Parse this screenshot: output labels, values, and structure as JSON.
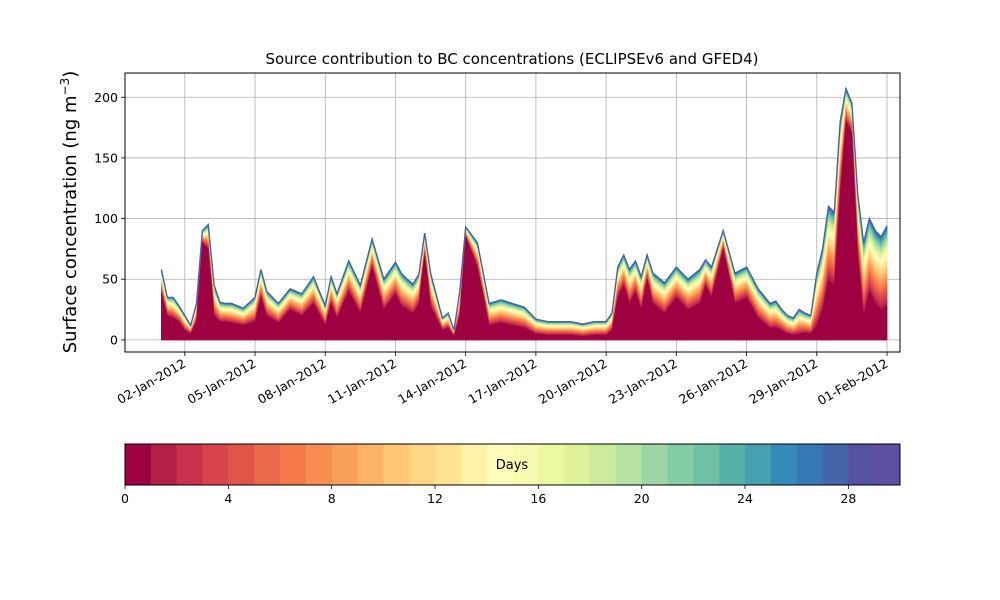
{
  "chart_data": {
    "type": "area",
    "subtype": "stacked-area",
    "title": "Source contribution to BC concentrations (ECLIPSEv6 and GFED4)",
    "ylabel": "Surface concentration (ng m",
    "ylabel_sup": "−3",
    "ylabel_close": ")",
    "xlabel": "",
    "x_axis": {
      "type": "date",
      "range": [
        "2011-12-31",
        "2012-02-01"
      ],
      "tick_values": [
        "2012-01-02",
        "2012-01-05",
        "2012-01-08",
        "2012-01-11",
        "2012-01-14",
        "2012-01-17",
        "2012-01-20",
        "2012-01-23",
        "2012-01-26",
        "2012-01-29",
        "2012-02-01"
      ],
      "tick_labels": [
        "02-Jan-2012",
        "05-Jan-2012",
        "08-Jan-2012",
        "11-Jan-2012",
        "14-Jan-2012",
        "17-Jan-2012",
        "20-Jan-2012",
        "23-Jan-2012",
        "26-Jan-2012",
        "29-Jan-2012",
        "01-Feb-2012"
      ]
    },
    "y_axis": {
      "range": [
        -10,
        220
      ],
      "ticks": [
        0,
        50,
        100,
        150,
        200
      ],
      "tick_labels": [
        "0",
        "50",
        "100",
        "150",
        "200"
      ]
    },
    "grid": true,
    "series_description": "Stacked contribution by days since emission (0–30 days); top envelope = total concentration",
    "x": [
      "2012-01-01",
      "2012-01-01 06:00",
      "2012-01-01 12:00",
      "2012-01-01 18:00",
      "2012-01-02",
      "2012-01-02 06:00",
      "2012-01-02 12:00",
      "2012-01-02 18:00",
      "2012-01-03",
      "2012-01-03 06:00",
      "2012-01-03 12:00",
      "2012-01-03 18:00",
      "2012-01-04",
      "2012-01-04 12:00",
      "2012-01-05",
      "2012-01-05 06:00",
      "2012-01-05 12:00",
      "2012-01-06",
      "2012-01-06 12:00",
      "2012-01-07",
      "2012-01-07 12:00",
      "2012-01-08",
      "2012-01-08 06:00",
      "2012-01-08 12:00",
      "2012-01-09",
      "2012-01-09 12:00",
      "2012-01-10",
      "2012-01-10 12:00",
      "2012-01-11",
      "2012-01-11 06:00",
      "2012-01-11 12:00",
      "2012-01-11 18:00",
      "2012-01-12",
      "2012-01-12 06:00",
      "2012-01-12 12:00",
      "2012-01-13",
      "2012-01-13 06:00",
      "2012-01-13 12:00",
      "2012-01-13 18:00",
      "2012-01-14",
      "2012-01-14 12:00",
      "2012-01-15",
      "2012-01-15 12:00",
      "2012-01-16",
      "2012-01-16 12:00",
      "2012-01-17",
      "2012-01-17 12:00",
      "2012-01-18",
      "2012-01-18 12:00",
      "2012-01-19",
      "2012-01-19 12:00",
      "2012-01-20",
      "2012-01-20 06:00",
      "2012-01-20 12:00",
      "2012-01-20 18:00",
      "2012-01-21",
      "2012-01-21 06:00",
      "2012-01-21 12:00",
      "2012-01-21 18:00",
      "2012-01-22",
      "2012-01-22 12:00",
      "2012-01-23",
      "2012-01-23 12:00",
      "2012-01-24",
      "2012-01-24 06:00",
      "2012-01-24 12:00",
      "2012-01-25",
      "2012-01-25 12:00",
      "2012-01-26",
      "2012-01-26 12:00",
      "2012-01-27",
      "2012-01-27 06:00",
      "2012-01-27 12:00",
      "2012-01-27 18:00",
      "2012-01-28",
      "2012-01-28 06:00",
      "2012-01-28 12:00",
      "2012-01-28 18:00",
      "2012-01-29",
      "2012-01-29 06:00",
      "2012-01-29 12:00",
      "2012-01-29 18:00",
      "2012-01-30",
      "2012-01-30 06:00",
      "2012-01-30 12:00",
      "2012-01-30 18:00",
      "2012-01-31",
      "2012-01-31 06:00",
      "2012-01-31 12:00",
      "2012-01-31 18:00",
      "2012-02-01"
    ],
    "total": [
      58,
      35,
      35,
      28,
      20,
      12,
      30,
      90,
      95,
      45,
      31,
      30,
      30,
      26,
      35,
      58,
      40,
      30,
      42,
      38,
      52,
      28,
      52,
      38,
      65,
      45,
      83,
      50,
      64,
      55,
      50,
      46,
      54,
      88,
      55,
      18,
      22,
      8,
      40,
      93,
      80,
      30,
      33,
      30,
      27,
      17,
      15,
      15,
      15,
      13,
      15,
      15,
      22,
      60,
      70,
      58,
      65,
      52,
      70,
      55,
      47,
      60,
      50,
      58,
      66,
      60,
      90,
      55,
      60,
      42,
      30,
      32,
      25,
      20,
      18,
      25,
      22,
      20,
      55,
      75,
      110,
      105,
      180,
      207,
      195,
      120,
      80,
      100,
      90,
      85,
      94
    ],
    "fresh_0_1_days": [
      38,
      20,
      18,
      15,
      8,
      5,
      15,
      80,
      75,
      20,
      15,
      15,
      14,
      12,
      15,
      35,
      20,
      14,
      25,
      20,
      30,
      12,
      30,
      18,
      40,
      22,
      60,
      25,
      38,
      28,
      25,
      22,
      30,
      70,
      28,
      8,
      10,
      3,
      20,
      85,
      60,
      12,
      14,
      12,
      10,
      5,
      4,
      4,
      4,
      3,
      4,
      4,
      8,
      35,
      45,
      30,
      40,
      25,
      50,
      30,
      22,
      35,
      25,
      30,
      45,
      35,
      75,
      30,
      35,
      18,
      10,
      10,
      8,
      5,
      4,
      5,
      6,
      5,
      12,
      25,
      50,
      45,
      120,
      180,
      170,
      70,
      20,
      40,
      30,
      25,
      28
    ],
    "colorbar": {
      "label": "Days",
      "min": 0,
      "max": 30,
      "ticks": [
        0,
        4,
        8,
        12,
        16,
        20,
        24,
        28
      ],
      "tick_labels": [
        "0",
        "4",
        "8",
        "12",
        "16",
        "20",
        "24",
        "28"
      ],
      "colors": [
        "#9e0142",
        "#b41f48",
        "#c9324c",
        "#d8434e",
        "#e15549",
        "#ea6a4b",
        "#f57949",
        "#f88d52",
        "#faa05b",
        "#fdb365",
        "#fdc574",
        "#fed685",
        "#fee391",
        "#fff1a8",
        "#fffcbc",
        "#f7fbaf",
        "#edf8a3",
        "#dff29a",
        "#cdeb9d",
        "#b6e1a0",
        "#9dd6a4",
        "#84cca4",
        "#6fc0a6",
        "#58b1a9",
        "#45a0b0",
        "#358cbb",
        "#3479b5",
        "#4565aa",
        "#5651a1",
        "#5e4fa2"
      ]
    }
  },
  "chart_title": "Source contribution to BC concentrations (ECLIPSEv6 and GFED4)",
  "colorbar_label": "Days"
}
